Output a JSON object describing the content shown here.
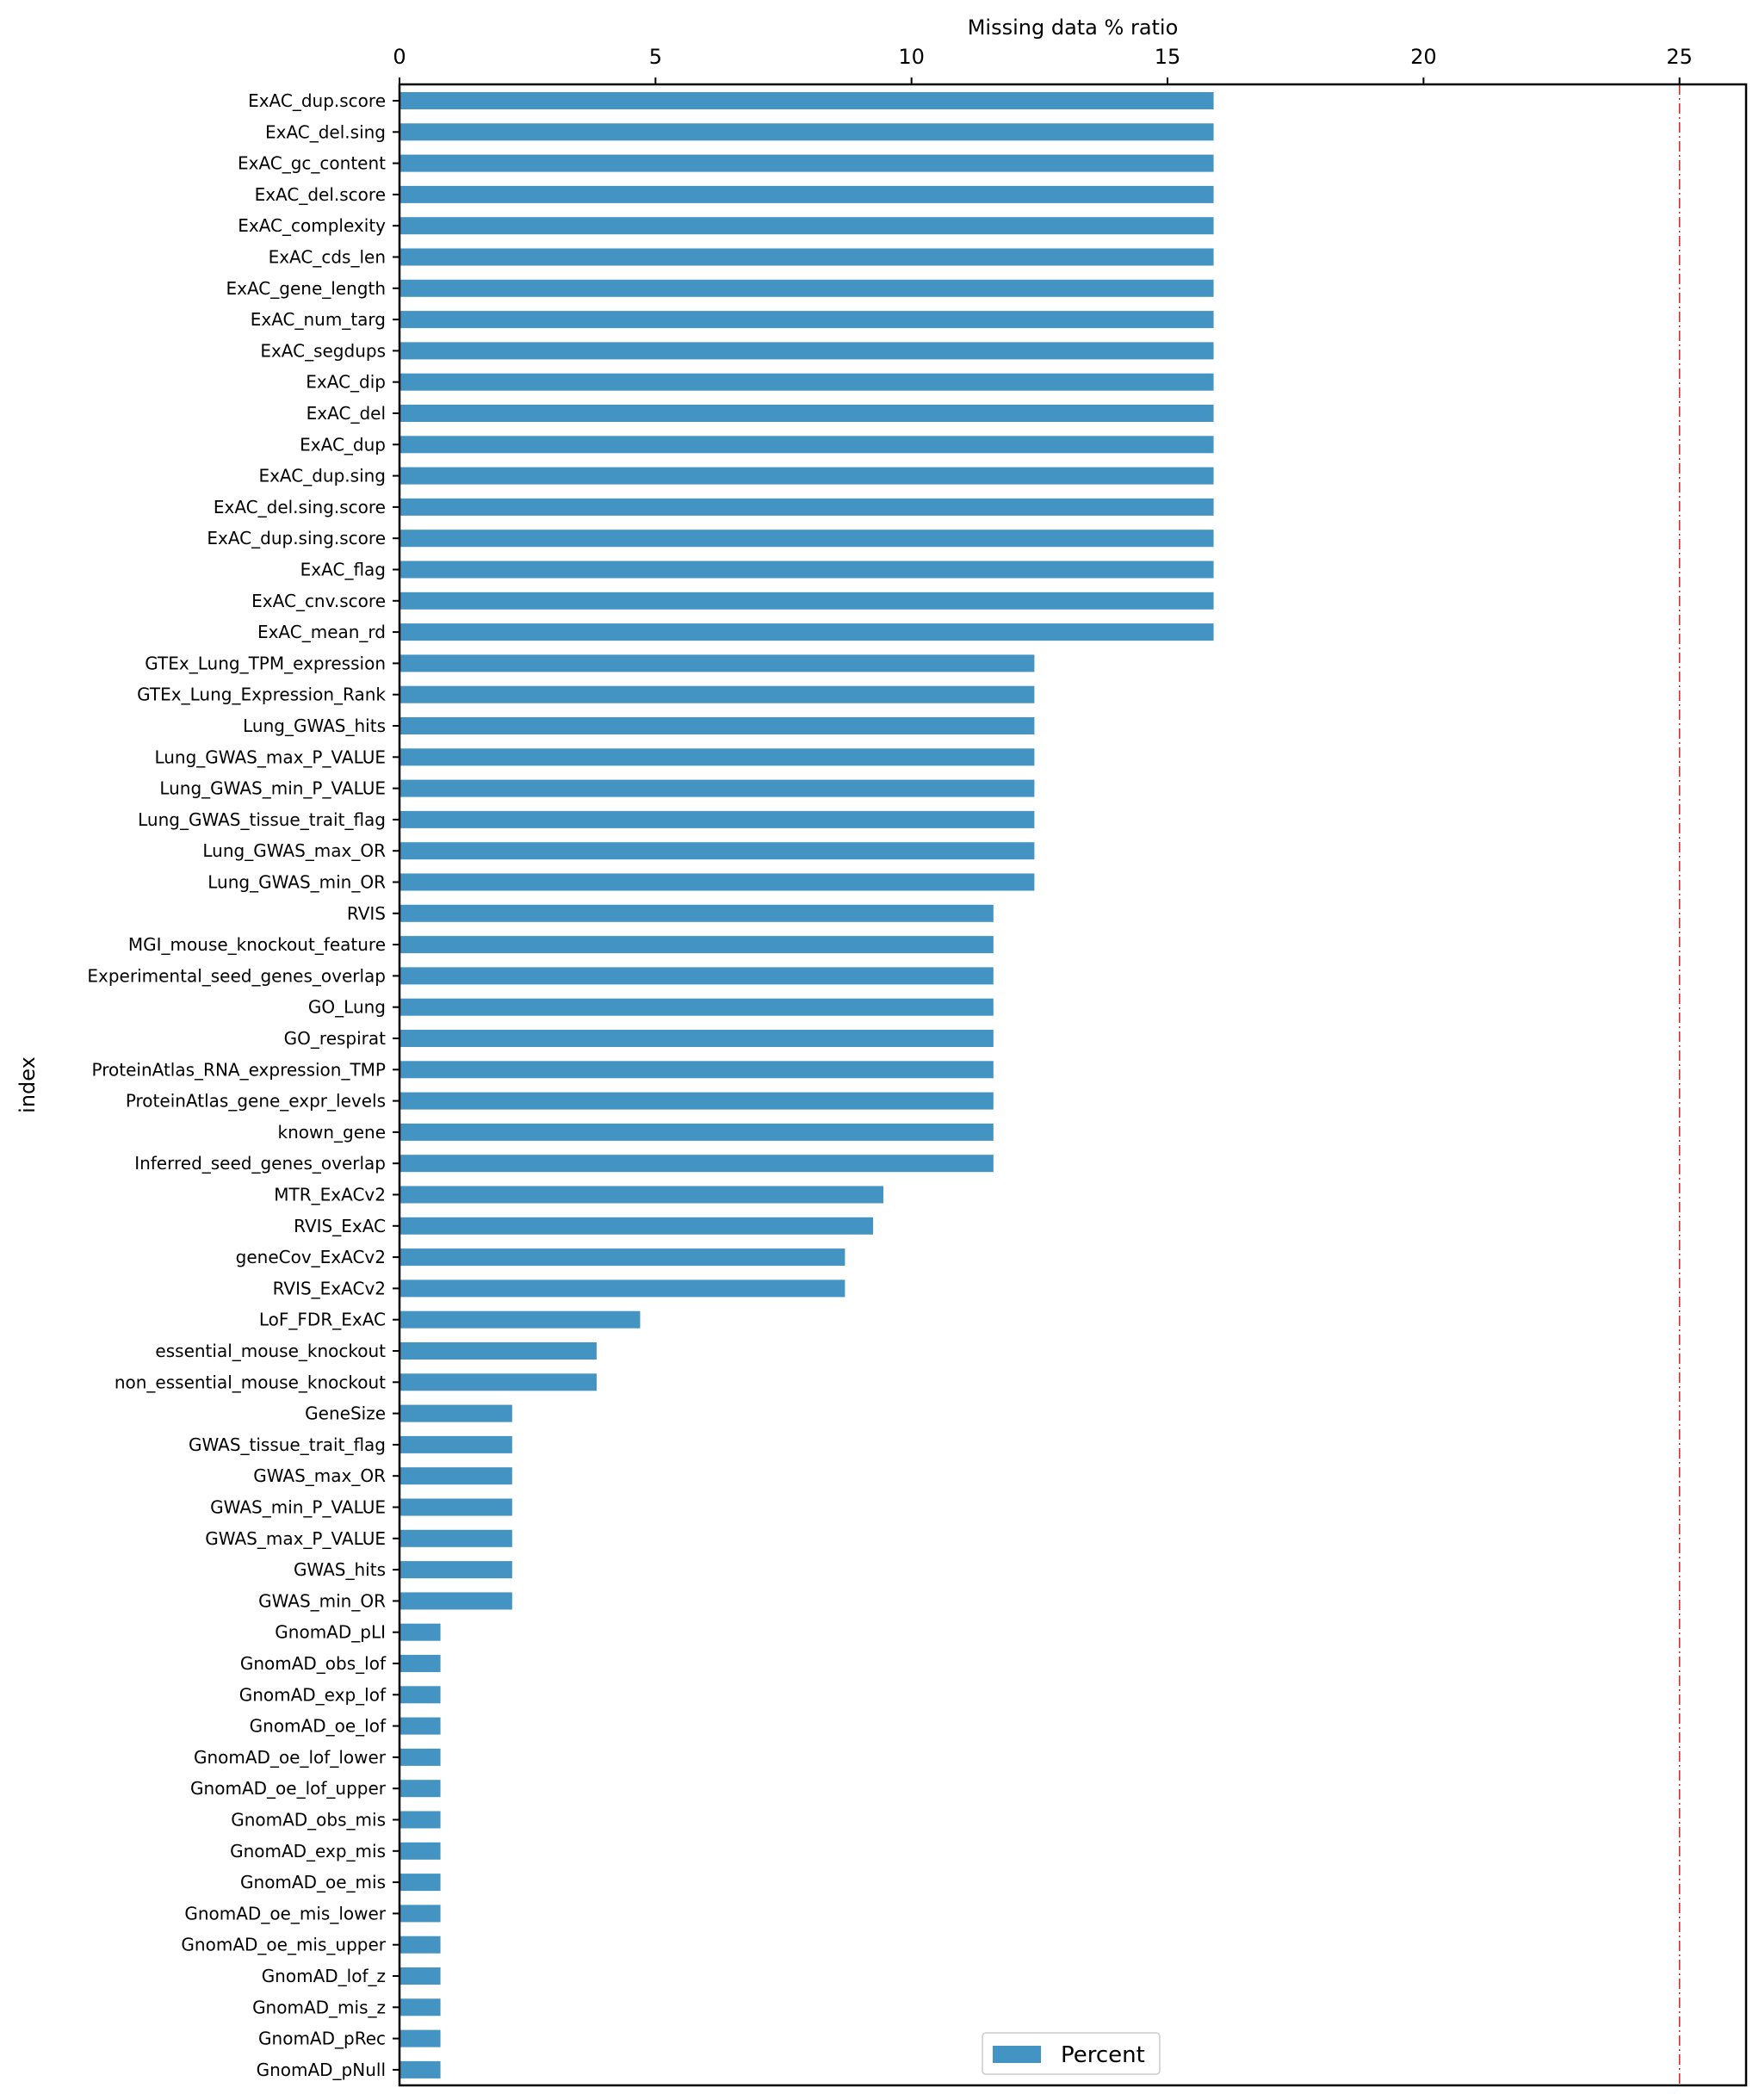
{
  "chart_data": {
    "type": "bar",
    "orientation": "horizontal",
    "title": "",
    "xlabel": "Missing data % ratio",
    "xlabel_position": "top",
    "ylabel": "index",
    "xlim": [
      0,
      26.3
    ],
    "xticks": [
      0,
      5,
      10,
      15,
      20,
      25
    ],
    "threshold_line": {
      "x": 25,
      "color": "#d62728",
      "style": "dash-dot"
    },
    "bar_color": "#4393c3",
    "legend": {
      "entries": [
        "Percent"
      ],
      "location": "lower center"
    },
    "categories": [
      "ExAC_dup.score",
      "ExAC_del.sing",
      "ExAC_gc_content",
      "ExAC_del.score",
      "ExAC_complexity",
      "ExAC_cds_len",
      "ExAC_gene_length",
      "ExAC_num_targ",
      "ExAC_segdups",
      "ExAC_dip",
      "ExAC_del",
      "ExAC_dup",
      "ExAC_dup.sing",
      "ExAC_del.sing.score",
      "ExAC_dup.sing.score",
      "ExAC_flag",
      "ExAC_cnv.score",
      "ExAC_mean_rd",
      "GTEx_Lung_TPM_expression",
      "GTEx_Lung_Expression_Rank",
      "Lung_GWAS_hits",
      "Lung_GWAS_max_P_VALUE",
      "Lung_GWAS_min_P_VALUE",
      "Lung_GWAS_tissue_trait_flag",
      "Lung_GWAS_max_OR",
      "Lung_GWAS_min_OR",
      "RVIS",
      "MGI_mouse_knockout_feature",
      "Experimental_seed_genes_overlap",
      "GO_Lung",
      "GO_respirat",
      "ProteinAtlas_RNA_expression_TMP",
      "ProteinAtlas_gene_expr_levels",
      "known_gene",
      "Inferred_seed_genes_overlap",
      "MTR_ExACv2",
      "RVIS_ExAC",
      "geneCov_ExACv2",
      "RVIS_ExACv2",
      "LoF_FDR_ExAC",
      "essential_mouse_knockout",
      "non_essential_mouse_knockout",
      "GeneSize",
      "GWAS_tissue_trait_flag",
      "GWAS_max_OR",
      "GWAS_min_P_VALUE",
      "GWAS_max_P_VALUE",
      "GWAS_hits",
      "GWAS_min_OR",
      "GnomAD_pLI",
      "GnomAD_obs_lof",
      "GnomAD_exp_lof",
      "GnomAD_oe_lof",
      "GnomAD_oe_lof_lower",
      "GnomAD_oe_lof_upper",
      "GnomAD_obs_mis",
      "GnomAD_exp_mis",
      "GnomAD_oe_mis",
      "GnomAD_oe_mis_lower",
      "GnomAD_oe_mis_upper",
      "GnomAD_lof_z",
      "GnomAD_mis_z",
      "GnomAD_pRec",
      "GnomAD_pNull"
    ],
    "series": [
      {
        "name": "Percent",
        "values": [
          15.9,
          15.9,
          15.9,
          15.9,
          15.9,
          15.9,
          15.9,
          15.9,
          15.9,
          15.9,
          15.9,
          15.9,
          15.9,
          15.9,
          15.9,
          15.9,
          15.9,
          15.9,
          12.4,
          12.4,
          12.4,
          12.4,
          12.4,
          12.4,
          12.4,
          12.4,
          11.6,
          11.6,
          11.6,
          11.6,
          11.6,
          11.6,
          11.6,
          11.6,
          11.6,
          9.45,
          9.25,
          8.7,
          8.7,
          4.7,
          3.85,
          3.85,
          2.2,
          2.2,
          2.2,
          2.2,
          2.2,
          2.2,
          2.2,
          0.8,
          0.8,
          0.8,
          0.8,
          0.8,
          0.8,
          0.8,
          0.8,
          0.8,
          0.8,
          0.8,
          0.8,
          0.8,
          0.8,
          0.8
        ]
      }
    ]
  }
}
